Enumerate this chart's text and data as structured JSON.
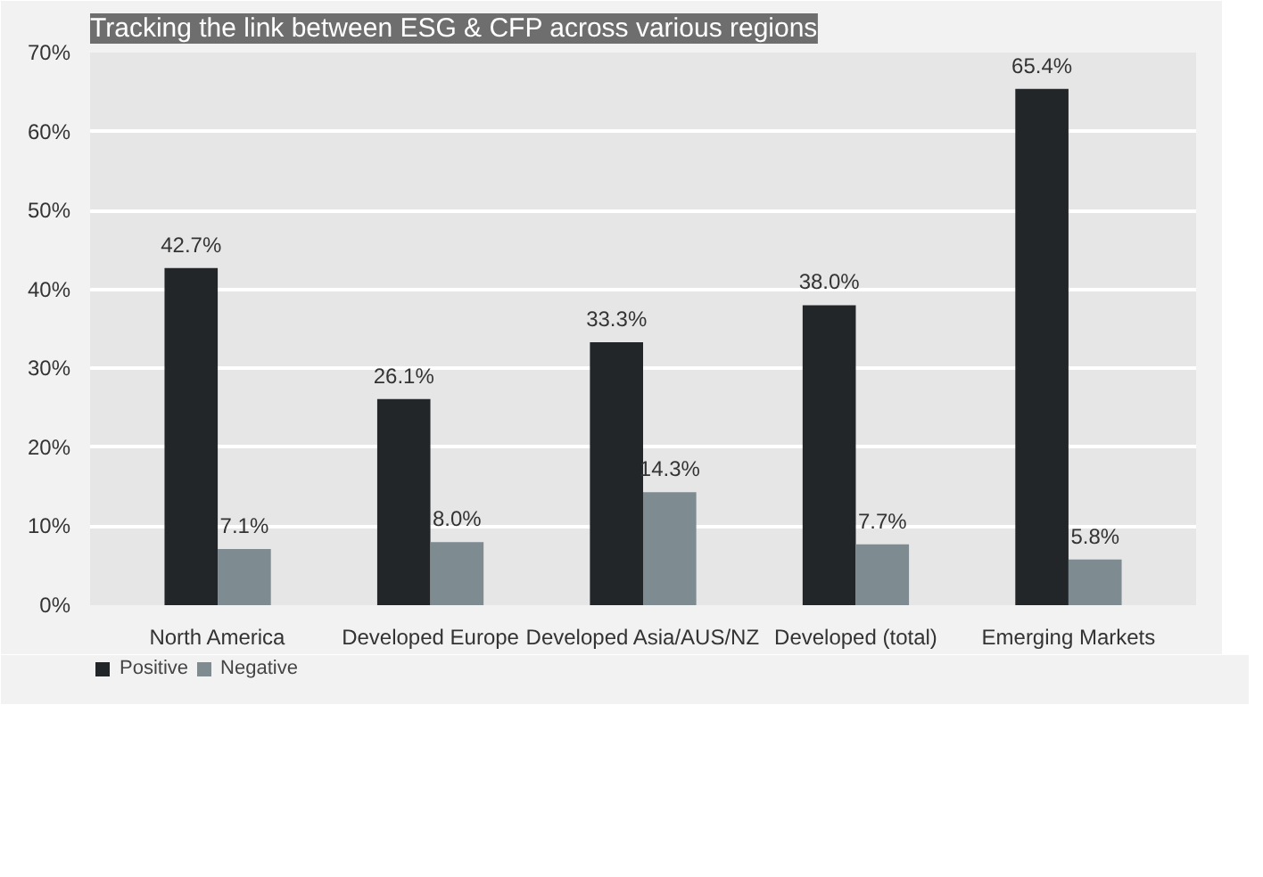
{
  "chart_data": {
    "type": "bar",
    "title": "Tracking the link between ESG & CFP across various regions",
    "categories": [
      "North America",
      "Developed Europe",
      "Developed Asia/AUS/NZ",
      "Developed (total)",
      "Emerging Markets"
    ],
    "series": [
      {
        "name": "Positive",
        "color": "#232628",
        "values": [
          42.7,
          26.1,
          33.3,
          38.0,
          65.4
        ],
        "value_labels": [
          "42.7%",
          "26.1%",
          "33.3%",
          "38.0%",
          "65.4%"
        ]
      },
      {
        "name": "Negative",
        "color": "#7e8b90",
        "values": [
          7.1,
          8.0,
          14.3,
          7.7,
          5.8
        ],
        "value_labels": [
          "7.1%",
          "8.0%",
          "14.3%",
          "7.7%",
          "5.8%"
        ]
      }
    ],
    "ylim": [
      0,
      70
    ],
    "yticks": [
      {
        "value": 0,
        "label": "0%"
      },
      {
        "value": 10,
        "label": "10%"
      },
      {
        "value": 20,
        "label": "20%"
      },
      {
        "value": 30,
        "label": "30%"
      },
      {
        "value": 40,
        "label": "40%"
      },
      {
        "value": 50,
        "label": "50%"
      },
      {
        "value": 60,
        "label": "60%"
      },
      {
        "value": 70,
        "label": "70%"
      }
    ],
    "grid": "y",
    "legend": "bottom left"
  }
}
